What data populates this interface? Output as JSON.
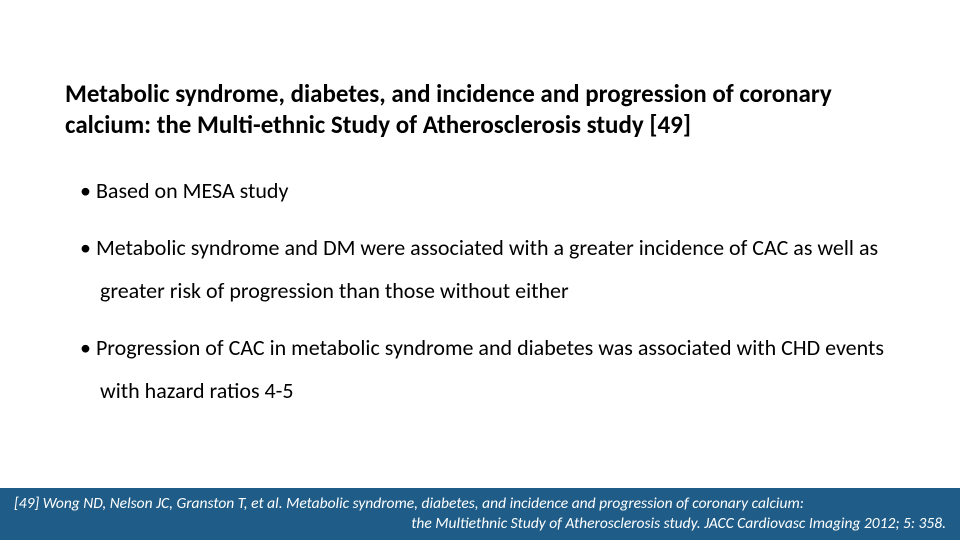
{
  "title": "Metabolic syndrome, diabetes, and incidence and progression of coronary calcium: the Multi-ethnic Study of Atherosclerosis study [49]",
  "bullets": [
    "Based on MESA study",
    "Metabolic syndrome and DM were associated with a greater incidence of CAC as well as greater risk of progression than those without either",
    "Progression of CAC in metabolic syndrome and diabetes was associated with CHD events with hazard ratios 4-5"
  ],
  "footer": {
    "line1": "[49] Wong ND, Nelson JC, Granston T, et al. Metabolic syndrome, diabetes, and incidence and progression of coronary calcium:",
    "line2": "the Multiethnic Study of Atherosclerosis study. JACC Cardiovasc Imaging 2012; 5: 358."
  },
  "colors": {
    "background": "#ffffff",
    "text": "#000000",
    "footer_bg": "#1f5d88",
    "footer_text": "#ffffff"
  },
  "fonts": {
    "title_size_pt": 25,
    "title_weight": 700,
    "body_size_pt": 22,
    "footer_size_pt": 15.5,
    "footer_style": "italic"
  }
}
